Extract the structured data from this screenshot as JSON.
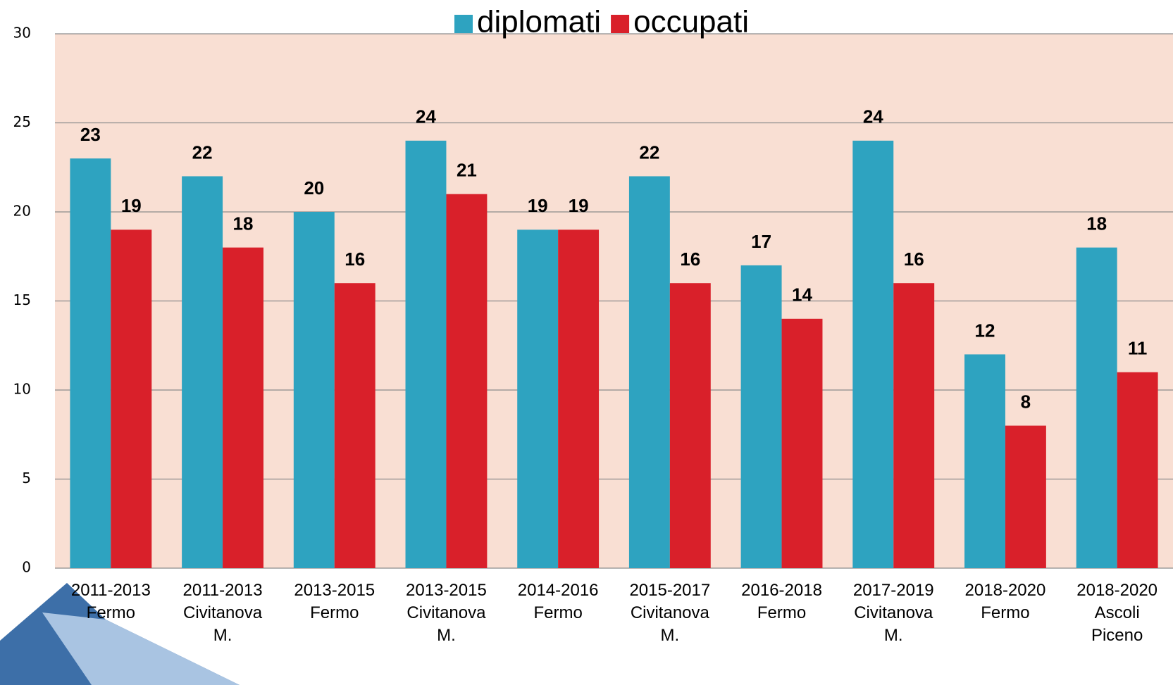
{
  "chart_data": {
    "type": "bar",
    "categories": [
      [
        "2011-2013",
        "Fermo"
      ],
      [
        "2011-2013",
        "Civitanova",
        "M."
      ],
      [
        "2013-2015",
        "Fermo"
      ],
      [
        "2013-2015",
        "Civitanova",
        "M."
      ],
      [
        "2014-2016",
        "Fermo"
      ],
      [
        "2015-2017",
        "Civitanova",
        "M."
      ],
      [
        "2016-2018",
        "Fermo"
      ],
      [
        "2017-2019",
        "Civitanova",
        "M."
      ],
      [
        "2018-2020",
        "Fermo"
      ],
      [
        "2018-2020",
        "Ascoli",
        "Piceno"
      ]
    ],
    "series": [
      {
        "name": "diplomati",
        "color": "#2ea3c0",
        "values": [
          23,
          22,
          20,
          24,
          19,
          22,
          17,
          24,
          12,
          18
        ]
      },
      {
        "name": "occupati",
        "color": "#d9202a",
        "values": [
          19,
          18,
          16,
          21,
          19,
          16,
          14,
          16,
          8,
          11
        ]
      }
    ],
    "ylim": [
      0,
      30
    ],
    "yticks": [
      0,
      5,
      10,
      15,
      20,
      25,
      30
    ],
    "grid": true,
    "legend": "top"
  }
}
